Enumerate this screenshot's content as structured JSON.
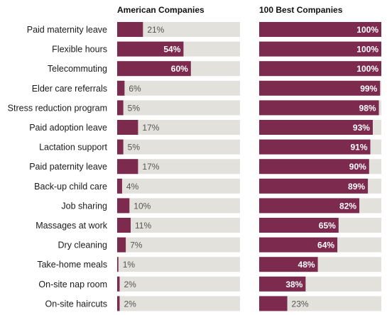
{
  "colors": {
    "bar": "#7d2a4f",
    "track": "#e3e1dc",
    "text": "#1a1a1a",
    "value_outside": "#555555",
    "value_inside": "#ffffff"
  },
  "chart_data": [
    {
      "type": "bar",
      "orientation": "horizontal",
      "title": "American Companies",
      "xlim": [
        0,
        100
      ],
      "unit": "%",
      "categories": [
        "Paid maternity leave",
        "Flexible hours",
        "Telecommuting",
        "Elder care referrals",
        "Stress reduction program",
        "Paid adoption leave",
        "Lactation support",
        "Paid paternity leave",
        "Back-up child care",
        "Job sharing",
        "Massages at work",
        "Dry cleaning",
        "Take-home meals",
        "On-site nap room",
        "On-site haircuts"
      ],
      "values": [
        21,
        54,
        60,
        6,
        5,
        17,
        5,
        17,
        4,
        10,
        11,
        7,
        1,
        2,
        2
      ]
    },
    {
      "type": "bar",
      "orientation": "horizontal",
      "title": "100 Best Companies",
      "xlim": [
        0,
        100
      ],
      "unit": "%",
      "categories": [
        "Paid maternity leave",
        "Flexible hours",
        "Telecommuting",
        "Elder care referrals",
        "Stress reduction program",
        "Paid adoption leave",
        "Lactation support",
        "Paid paternity leave",
        "Back-up child care",
        "Job sharing",
        "Massages at work",
        "Dry cleaning",
        "Take-home meals",
        "On-site nap room",
        "On-site haircuts"
      ],
      "values": [
        100,
        100,
        100,
        99,
        98,
        93,
        91,
        90,
        89,
        82,
        65,
        64,
        48,
        38,
        23
      ]
    }
  ]
}
